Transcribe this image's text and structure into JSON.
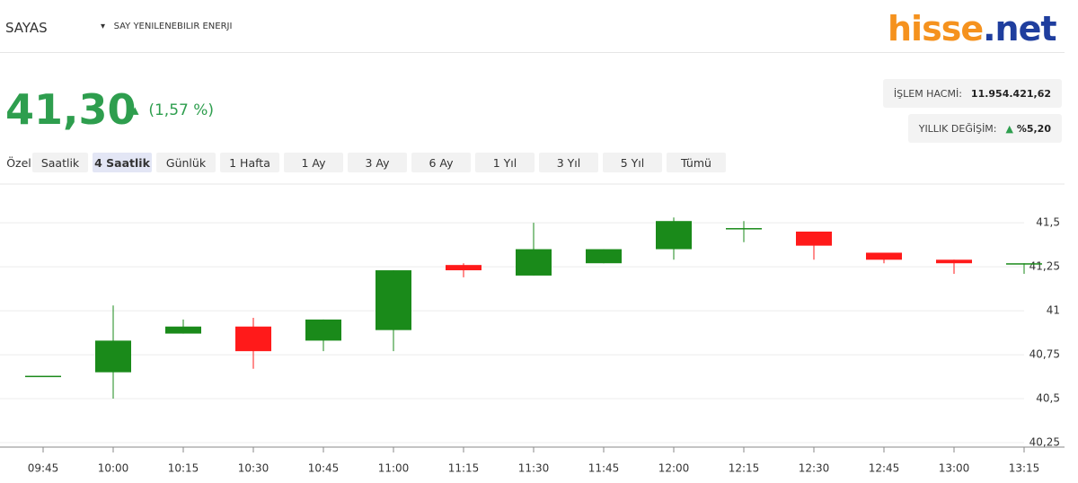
{
  "header": {
    "symbol": "SAYAS",
    "company": "SAY YENILENEBILIR ENERJI",
    "logo": {
      "left": "hisse",
      "right": ".net"
    }
  },
  "quote": {
    "price": "41,30",
    "change": "(1,57 %)",
    "stats": [
      {
        "label": "İŞLEM HACMİ:",
        "value": "11.954.421,62"
      },
      {
        "label": "YILLIK DEĞİŞİM:",
        "value": "%5,20"
      }
    ]
  },
  "tabs": {
    "items": [
      "Özel",
      "Saatlik",
      "4 Saatlik",
      "Günlük",
      "1 Hafta",
      "1 Ay",
      "3 Ay",
      "6 Ay",
      "1 Yıl",
      "3 Yıl",
      "5 Yıl",
      "Tümü"
    ],
    "active": "4 Saatlik"
  },
  "chart_data": {
    "type": "candlestick",
    "categories": [
      "09:45",
      "10:00",
      "10:15",
      "10:30",
      "10:45",
      "11:00",
      "11:15",
      "11:30",
      "11:45",
      "12:00",
      "12:15",
      "12:30",
      "12:45",
      "13:00",
      "13:15"
    ],
    "open": [
      40.63,
      40.65,
      40.87,
      40.91,
      40.83,
      40.89,
      41.26,
      41.2,
      41.27,
      41.35,
      41.47,
      41.45,
      41.33,
      41.29,
      41.27
    ],
    "high": [
      40.63,
      41.03,
      40.95,
      40.96,
      40.95,
      41.23,
      41.27,
      41.5,
      41.35,
      41.53,
      41.51,
      41.45,
      41.33,
      41.29,
      41.27
    ],
    "low": [
      40.63,
      40.5,
      40.87,
      40.67,
      40.77,
      40.77,
      41.19,
      41.2,
      41.27,
      41.29,
      41.39,
      41.29,
      41.27,
      41.21,
      41.21
    ],
    "close": [
      40.63,
      40.83,
      40.91,
      40.77,
      40.95,
      41.23,
      41.23,
      41.35,
      41.35,
      41.51,
      41.47,
      41.37,
      41.29,
      41.27,
      41.27
    ],
    "up_color": "#1a8a1a",
    "down_color": "#ff1a1a",
    "ylim": [
      40.25,
      41.7
    ],
    "yticks": [
      {
        "value": 40.25,
        "label": "40,25"
      },
      {
        "value": 40.5,
        "label": "40,5"
      },
      {
        "value": 40.75,
        "label": "40,75"
      },
      41,
      {
        "value": 41.25,
        "label": "41,25"
      },
      {
        "value": 41.5,
        "label": "41,5"
      }
    ],
    "grid": true
  }
}
